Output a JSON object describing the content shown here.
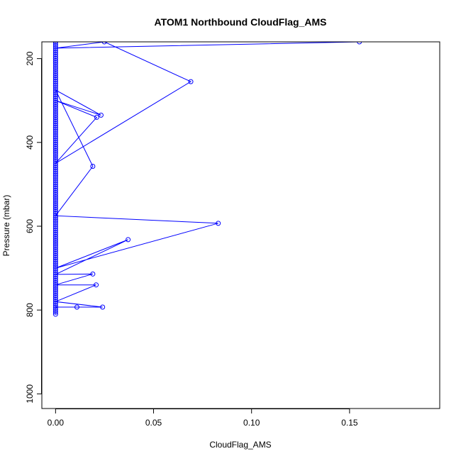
{
  "chart_data": {
    "type": "line",
    "title": "ATOM1 Northbound CloudFlag_AMS",
    "xlabel": "CloudFlag_AMS",
    "ylabel": "Pressure (mbar)",
    "xlim": [
      -0.007,
      0.196
    ],
    "ylim": [
      1035,
      160
    ],
    "y_reversed": true,
    "x_ticks": [
      {
        "value": 0.0,
        "label": "0.00"
      },
      {
        "value": 0.05,
        "label": "0.05"
      },
      {
        "value": 0.1,
        "label": "0.10"
      },
      {
        "value": 0.15,
        "label": "0.15"
      }
    ],
    "y_ticks": [
      {
        "value": 200,
        "label": "200"
      },
      {
        "value": 400,
        "label": "400"
      },
      {
        "value": 600,
        "label": "600"
      },
      {
        "value": 800,
        "label": "800"
      },
      {
        "value": 1000,
        "label": "1000"
      }
    ],
    "grid": false,
    "legend": "none",
    "colors": {
      "series": "#0000ff",
      "axis": "#000000"
    },
    "series": [
      {
        "x": [
          0,
          0.155,
          0,
          0.0249,
          0.069,
          0,
          0.021,
          0,
          0.0232,
          0,
          0.019,
          0,
          0.083,
          0,
          0.037,
          0,
          0.019,
          0,
          0.0207,
          0,
          0.024,
          0,
          0.0109,
          0
        ],
        "y": [
          160,
          160,
          175,
          160,
          255,
          450,
          340,
          300,
          335,
          275,
          457,
          575,
          593,
          700,
          632,
          715,
          714,
          740,
          740,
          780,
          793,
          793,
          793,
          793
        ]
      }
    ],
    "column_points": [
      {
        "x": 0,
        "y_from": 160,
        "y_to": 810,
        "step": 5
      }
    ]
  }
}
